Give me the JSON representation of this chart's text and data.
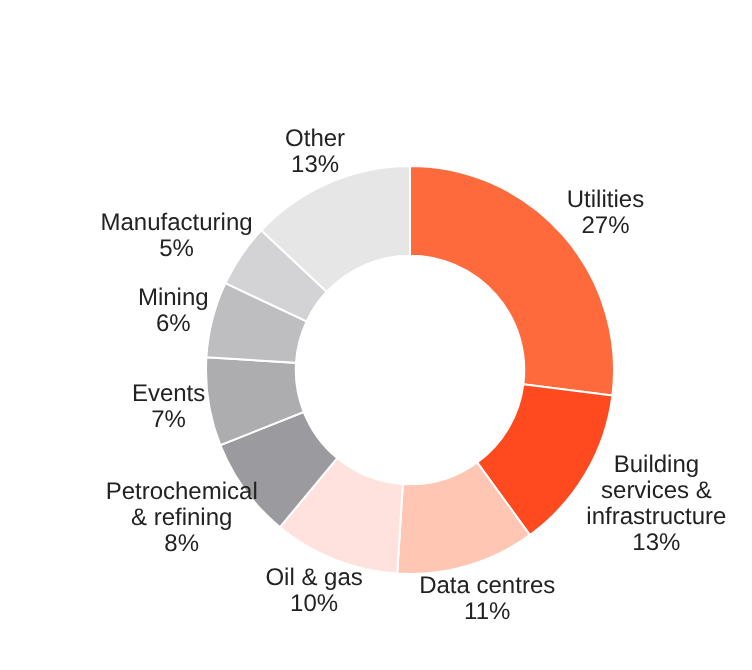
{
  "chart_data": {
    "type": "donut",
    "categories": [
      "Utilities",
      "Building services & infrastructure",
      "Data centres",
      "Oil & gas",
      "Petrochemical & refining",
      "Events",
      "Mining",
      "Manufacturing",
      "Other"
    ],
    "values": [
      27,
      13,
      11,
      10,
      8,
      7,
      6,
      5,
      13
    ],
    "value_labels": [
      "27%",
      "13%",
      "11%",
      "10%",
      "8%",
      "7%",
      "6%",
      "5%",
      "13%"
    ],
    "colors": [
      "#ff6a3d",
      "#ff4a1f",
      "#ffc6b3",
      "#ffe1de",
      "#9b9b9f",
      "#adadb0",
      "#bebec0",
      "#d3d3d5",
      "#e6e6e6"
    ]
  }
}
